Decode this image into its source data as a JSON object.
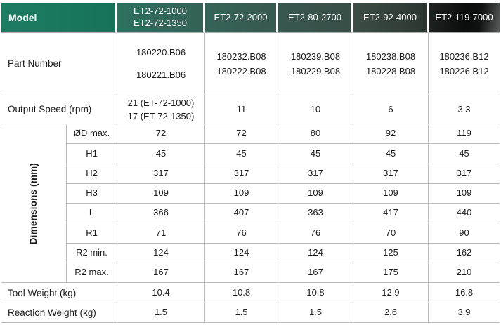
{
  "colors": {
    "brand_green": "#1a7a60",
    "header_gradient_start": "#2e7160",
    "header_gradient_end": "#0b0d0c",
    "gridline_gray": "#b7bcba",
    "header_text": "#ffffff",
    "body_text": "#1c1c1c"
  },
  "header": {
    "model_label": "Model",
    "columns": [
      "ET2-72-1000\nET2-72-1350",
      "ET2-72-2000",
      "ET2-80-2700",
      "ET2-92-4000",
      "ET2-119-7000"
    ]
  },
  "part_number": {
    "label": "Part Number",
    "values": [
      "180220.B06\n\n180221.B06",
      "180232.B08\n180222.B08",
      "180239.B08\n180229.B08",
      "180238.B08\n180228.B08",
      "180236.B12\n180226.B12"
    ]
  },
  "output_speed": {
    "label": "Output Speed (rpm)",
    "values": [
      "21 (ET-72-1000)\n17 (ET-72-1350)",
      "11",
      "10",
      "6",
      "3.3"
    ]
  },
  "dimensions": {
    "group_label": "Dimensions (mm)",
    "rows": [
      {
        "label": "ØD max.",
        "values": [
          "72",
          "72",
          "80",
          "92",
          "119"
        ]
      },
      {
        "label": "H1",
        "values": [
          "45",
          "45",
          "45",
          "45",
          "45"
        ]
      },
      {
        "label": "H2",
        "values": [
          "317",
          "317",
          "317",
          "317",
          "317"
        ]
      },
      {
        "label": "H3",
        "values": [
          "109",
          "109",
          "109",
          "109",
          "109"
        ]
      },
      {
        "label": "L",
        "values": [
          "366",
          "407",
          "363",
          "417",
          "440"
        ]
      },
      {
        "label": "R1",
        "values": [
          "71",
          "76",
          "76",
          "70",
          "90"
        ]
      },
      {
        "label": "R2 min.",
        "values": [
          "124",
          "124",
          "124",
          "125",
          "162"
        ]
      },
      {
        "label": "R2 max.",
        "values": [
          "167",
          "167",
          "167",
          "175",
          "210"
        ]
      }
    ]
  },
  "tool_weight": {
    "label": "Tool Weight (kg)",
    "values": [
      "10.4",
      "10.8",
      "10.8",
      "12.9",
      "16.8"
    ]
  },
  "reaction_weight": {
    "label": "Reaction Weight (kg)",
    "values": [
      "1.5",
      "1.5",
      "1.5",
      "2.6",
      "3.9"
    ]
  }
}
